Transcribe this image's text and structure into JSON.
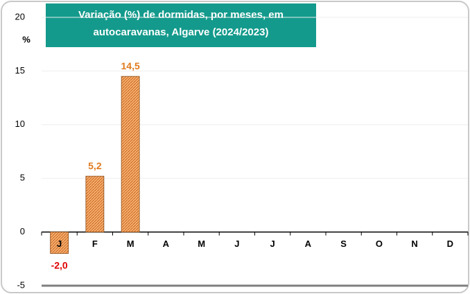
{
  "chart_data": {
    "type": "bar",
    "title": "Variação (%) de dormidas, por meses, em autocaravanas, Algarve (2024/2023)",
    "title_lines": [
      "Variação (%) de dormidas, por meses, em",
      "autocaravanas, Algarve (2024/2023)"
    ],
    "y_label": "%",
    "categories": [
      "J",
      "F",
      "M",
      "A",
      "M",
      "J",
      "J",
      "A",
      "S",
      "O",
      "N",
      "D"
    ],
    "values": [
      -2.0,
      5.2,
      14.5,
      null,
      null,
      null,
      null,
      null,
      null,
      null,
      null,
      null
    ],
    "value_labels": [
      "-2,0",
      "5,2",
      "14,5",
      null,
      null,
      null,
      null,
      null,
      null,
      null,
      null,
      null
    ],
    "color": "#f0a050",
    "label_color": "#e07a1f",
    "negative_label_color": "#e00000",
    "title_color": "#139a8c",
    "ylim": [
      -5,
      20
    ],
    "yticks": [
      -5,
      0,
      5,
      10,
      15,
      20
    ],
    "grid": true
  }
}
